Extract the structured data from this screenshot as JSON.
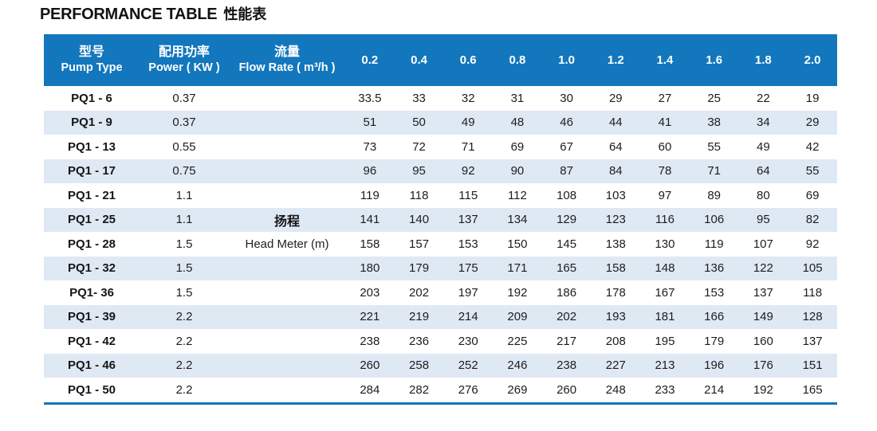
{
  "page": {
    "title_en": "PERFORMANCE TABLE",
    "title_zh": "性能表"
  },
  "colors": {
    "header_bg": "#1277bd",
    "row_alt_bg": "#dfe9f4",
    "bottom_rule": "#1277bd",
    "header_text": "#ffffff",
    "body_text": "#1d1d1d"
  },
  "table": {
    "header": {
      "pump_type_zh": "型号",
      "pump_type_en": "Pump Type",
      "power_zh": "配用功率",
      "power_en": "Power ( KW )",
      "flow_zh": "流量",
      "flow_en": "Flow Rate ( m³/h )",
      "flow_values": [
        "0.2",
        "0.4",
        "0.6",
        "0.8",
        "1.0",
        "1.2",
        "1.4",
        "1.6",
        "1.8",
        "2.0"
      ]
    },
    "flow_column_label": {
      "zh": "扬程",
      "en": "Head Meter (m)",
      "zh_row_index": 5,
      "en_row_index": 6
    },
    "rows": [
      {
        "model": "PQ1 - 6",
        "power": "0.37",
        "values": [
          "33.5",
          "33",
          "32",
          "31",
          "30",
          "29",
          "27",
          "25",
          "22",
          "19"
        ]
      },
      {
        "model": "PQ1 - 9",
        "power": "0.37",
        "values": [
          "51",
          "50",
          "49",
          "48",
          "46",
          "44",
          "41",
          "38",
          "34",
          "29"
        ]
      },
      {
        "model": "PQ1 - 13",
        "power": "0.55",
        "values": [
          "73",
          "72",
          "71",
          "69",
          "67",
          "64",
          "60",
          "55",
          "49",
          "42"
        ]
      },
      {
        "model": "PQ1 - 17",
        "power": "0.75",
        "values": [
          "96",
          "95",
          "92",
          "90",
          "87",
          "84",
          "78",
          "71",
          "64",
          "55"
        ]
      },
      {
        "model": "PQ1 - 21",
        "power": "1.1",
        "values": [
          "119",
          "118",
          "115",
          "112",
          "108",
          "103",
          "97",
          "89",
          "80",
          "69"
        ]
      },
      {
        "model": "PQ1 - 25",
        "power": "1.1",
        "values": [
          "141",
          "140",
          "137",
          "134",
          "129",
          "123",
          "116",
          "106",
          "95",
          "82"
        ]
      },
      {
        "model": "PQ1 - 28",
        "power": "1.5",
        "values": [
          "158",
          "157",
          "153",
          "150",
          "145",
          "138",
          "130",
          "119",
          "107",
          "92"
        ]
      },
      {
        "model": "PQ1 - 32",
        "power": "1.5",
        "values": [
          "180",
          "179",
          "175",
          "171",
          "165",
          "158",
          "148",
          "136",
          "122",
          "105"
        ]
      },
      {
        "model": "PQ1- 36",
        "power": "1.5",
        "values": [
          "203",
          "202",
          "197",
          "192",
          "186",
          "178",
          "167",
          "153",
          "137",
          "118"
        ]
      },
      {
        "model": "PQ1 - 39",
        "power": "2.2",
        "values": [
          "221",
          "219",
          "214",
          "209",
          "202",
          "193",
          "181",
          "166",
          "149",
          "128"
        ]
      },
      {
        "model": "PQ1 - 42",
        "power": "2.2",
        "values": [
          "238",
          "236",
          "230",
          "225",
          "217",
          "208",
          "195",
          "179",
          "160",
          "137"
        ]
      },
      {
        "model": "PQ1 - 46",
        "power": "2.2",
        "values": [
          "260",
          "258",
          "252",
          "246",
          "238",
          "227",
          "213",
          "196",
          "176",
          "151"
        ]
      },
      {
        "model": "PQ1 - 50",
        "power": "2.2",
        "values": [
          "284",
          "282",
          "276",
          "269",
          "260",
          "248",
          "233",
          "214",
          "192",
          "165"
        ]
      }
    ]
  }
}
